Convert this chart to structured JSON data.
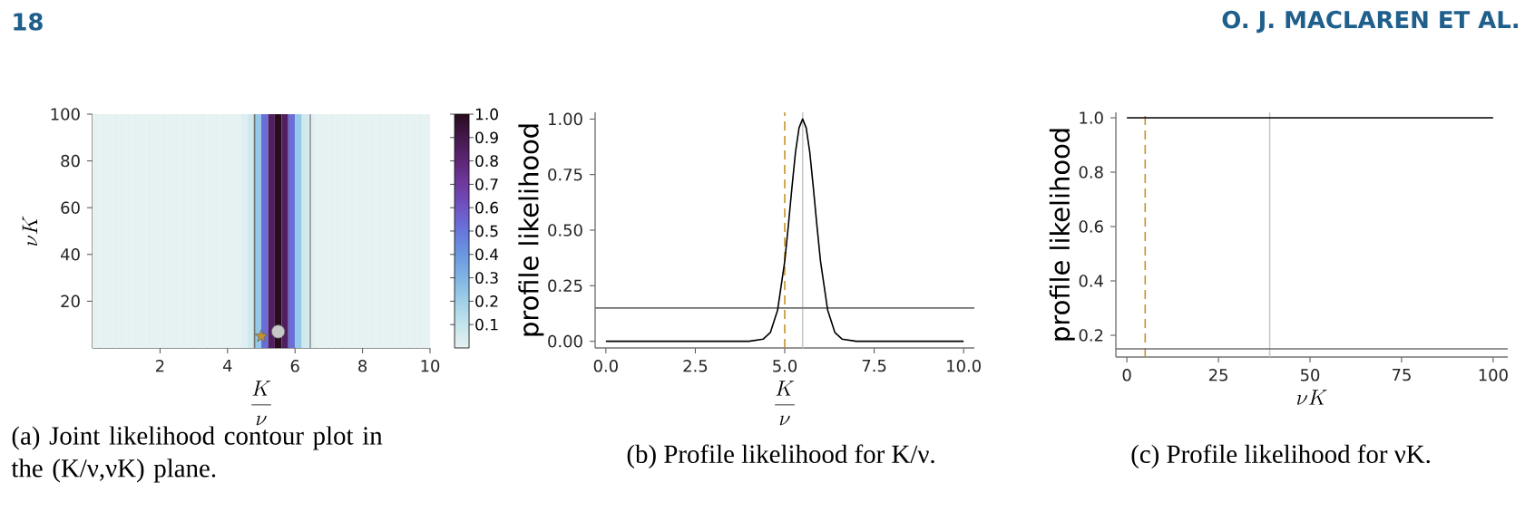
{
  "chart_data": [
    {
      "type": "heatmap",
      "x": [
        0.1,
        0.3,
        0.5,
        0.7,
        0.9,
        1.1,
        1.3,
        1.5,
        1.7,
        1.9,
        2.1,
        2.3,
        2.5,
        2.7,
        2.9,
        3.1,
        3.3,
        3.5,
        3.7,
        3.9,
        4.1,
        4.3,
        4.5,
        4.7,
        4.9,
        5.1,
        5.3,
        5.5,
        5.7,
        5.9,
        6.1,
        6.3,
        6.5,
        6.7,
        6.9,
        7.1,
        7.3,
        7.5,
        7.7,
        7.9,
        8.1,
        8.3,
        8.5,
        8.7,
        8.9,
        9.1,
        9.3,
        9.5,
        9.7,
        9.9
      ],
      "cells": [
        [
          0,
          0,
          0,
          0,
          0,
          0,
          0,
          0,
          0,
          0,
          0,
          0,
          0,
          0,
          0,
          0,
          0,
          0,
          0,
          0,
          0,
          0,
          0.02,
          0.07,
          0.23,
          0.52,
          0.85,
          1,
          0.85,
          0.52,
          0.23,
          0.07,
          0.02,
          0,
          0,
          0,
          0,
          0,
          0,
          0,
          0,
          0,
          0,
          0,
          0,
          0,
          0,
          0,
          0,
          0
        ]
      ],
      "clim": [
        0,
        1
      ],
      "cticks": [
        0.1,
        0.2,
        0.3,
        0.4,
        0.5,
        0.6,
        0.7,
        0.8,
        0.9,
        {
          "value": 1,
          "label": "1.0"
        }
      ],
      "xlim": [
        0,
        10
      ],
      "xticks": [
        2,
        4,
        6,
        8,
        10
      ],
      "ylim": [
        0,
        100
      ],
      "yticks": [
        20,
        40,
        60,
        80,
        100
      ],
      "xlabel": "\\frac{K}{\\nu}",
      "ylabel": "\\nu K",
      "series": [
        {
          "type": "scatter",
          "x": [
            5
          ],
          "values": [
            5
          ],
          "color": "#c8922a",
          "marker": "star"
        },
        {
          "type": "scatter",
          "x": [
            5.5
          ],
          "values": [
            7
          ],
          "color": "#c8c8c8",
          "marker": "circle"
        }
      ],
      "ref_lines": [
        {
          "axis": "x",
          "value": 4.8,
          "color": "#707070"
        },
        {
          "axis": "x",
          "value": 6.45,
          "color": "#909090"
        }
      ],
      "annotations": [
        "(a) Joint likelihood contour plot in the (K/ν,νK) plane.",
        "18"
      ]
    },
    {
      "type": "line",
      "series": [
        {
          "color": "#000000",
          "x": [
            0,
            1,
            2,
            3,
            4,
            4.4,
            4.6,
            4.8,
            5,
            5.1,
            5.2,
            5.3,
            5.4,
            5.5,
            5.6,
            5.7,
            5.8,
            5.9,
            6,
            6.2,
            6.4,
            6.6,
            7,
            8,
            9,
            10
          ],
          "values": [
            0,
            0,
            0,
            0,
            0,
            0.01,
            0.04,
            0.14,
            0.36,
            0.52,
            0.69,
            0.85,
            0.96,
            1,
            0.96,
            0.85,
            0.69,
            0.52,
            0.36,
            0.14,
            0.04,
            0.01,
            0,
            0,
            0,
            0
          ]
        }
      ],
      "xlim": [
        -0.3,
        10.3
      ],
      "xticks": [
        {
          "value": 0,
          "label": "0.0"
        },
        2.5,
        {
          "value": 5,
          "label": "5.0"
        },
        7.5,
        {
          "value": 10,
          "label": "10.0"
        }
      ],
      "ylim": [
        -0.03,
        1.03
      ],
      "yticks": [
        {
          "value": 0,
          "label": "0.00"
        },
        0.25,
        {
          "value": 0.5,
          "label": "0.50"
        },
        0.75,
        {
          "value": 1,
          "label": "1.00"
        }
      ],
      "xlabel": "\\frac{K}{\\nu}",
      "ylabel": "profile likelihood",
      "marker": "none",
      "line_style": "solid",
      "ref_lines": [
        {
          "axis": "x",
          "value": 5,
          "color": "#c8922a",
          "line_style": "dashed"
        },
        {
          "axis": "x",
          "value": 5.5,
          "color": "#c8c8c8"
        },
        {
          "axis": "y",
          "value": 0.15,
          "color": "#707070"
        }
      ],
      "annotations": [
        "(b) Profile likelihood for K/ν."
      ]
    },
    {
      "type": "line",
      "series": [
        {
          "color": "#000000",
          "x": [
            0,
            100
          ],
          "values": [
            1,
            1
          ]
        }
      ],
      "xlim": [
        -3,
        104
      ],
      "xticks": [
        0,
        25,
        50,
        75,
        100
      ],
      "ylim": [
        0.12,
        1.02
      ],
      "yticks": [
        0.2,
        0.4,
        0.6,
        0.8,
        {
          "value": 1,
          "label": "1.0"
        }
      ],
      "xlabel": "\\nu K",
      "ylabel": "profile likelihood",
      "marker": "none",
      "line_style": "solid",
      "ref_lines": [
        {
          "axis": "x",
          "value": 5,
          "color": "#c8922a",
          "line_style": "dashed"
        },
        {
          "axis": "x",
          "value": 39,
          "color": "#c8c8c8"
        },
        {
          "axis": "y",
          "value": 0.15,
          "color": "#707070"
        }
      ],
      "annotations": [
        "(c) Profile likelihood for νK.",
        "O. J. MACLAREN ET AL."
      ]
    }
  ]
}
